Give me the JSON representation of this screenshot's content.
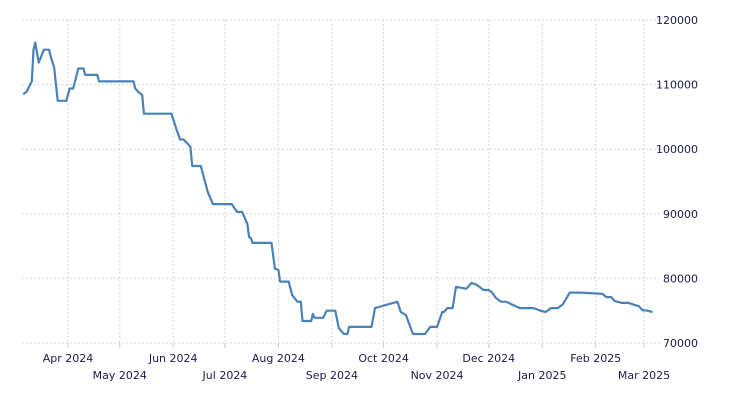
{
  "chart_data": {
    "type": "line",
    "title": "",
    "xlabel": "",
    "ylabel": "",
    "ylim": [
      70000,
      120000
    ],
    "y_ticks": [
      70000,
      80000,
      90000,
      100000,
      110000,
      120000
    ],
    "y_tick_labels": [
      "70000",
      "80000",
      "90000",
      "100000",
      "110000",
      "120000"
    ],
    "y_axis_position": "right",
    "x_ticks": [
      {
        "date": "2024-04-01",
        "label": "Apr 2024",
        "row": 1
      },
      {
        "date": "2024-05-01",
        "label": "May 2024",
        "row": 2
      },
      {
        "date": "2024-06-01",
        "label": "Jun 2024",
        "row": 1
      },
      {
        "date": "2024-07-01",
        "label": "Jul 2024",
        "row": 2
      },
      {
        "date": "2024-08-01",
        "label": "Aug 2024",
        "row": 1
      },
      {
        "date": "2024-09-01",
        "label": "Sep 2024",
        "row": 2
      },
      {
        "date": "2024-10-01",
        "label": "Oct 2024",
        "row": 1
      },
      {
        "date": "2024-11-01",
        "label": "Nov 2024",
        "row": 2
      },
      {
        "date": "2024-12-01",
        "label": "Dec 2024",
        "row": 1
      },
      {
        "date": "2025-01-01",
        "label": "Jan 2025",
        "row": 2
      },
      {
        "date": "2025-02-01",
        "label": "Feb 2025",
        "row": 1
      },
      {
        "date": "2025-03-01",
        "label": "Mar 2025",
        "row": 2
      }
    ],
    "grid": true,
    "grid_style": "dotted",
    "line_color": "#4a82b8",
    "series": [
      {
        "x": [
          "2024-03-06",
          "2024-03-08",
          "2024-03-11",
          "2024-03-12",
          "2024-03-13",
          "2024-03-15",
          "2024-03-18",
          "2024-03-21",
          "2024-03-22",
          "2024-03-24",
          "2024-03-26",
          "2024-03-31",
          "2024-04-02",
          "2024-04-04",
          "2024-04-07",
          "2024-04-10",
          "2024-04-11",
          "2024-04-18",
          "2024-04-19",
          "2024-05-09",
          "2024-05-10",
          "2024-05-12",
          "2024-05-14",
          "2024-05-15",
          "2024-05-31",
          "2024-06-03",
          "2024-06-05",
          "2024-06-07",
          "2024-06-11",
          "2024-06-12",
          "2024-06-17",
          "2024-06-21",
          "2024-06-24",
          "2024-07-05",
          "2024-07-08",
          "2024-07-11",
          "2024-07-14",
          "2024-07-15",
          "2024-07-16",
          "2024-07-17",
          "2024-07-28",
          "2024-07-30",
          "2024-08-01",
          "2024-08-02",
          "2024-08-07",
          "2024-08-09",
          "2024-08-12",
          "2024-08-14",
          "2024-08-15",
          "2024-08-20",
          "2024-08-21",
          "2024-08-22",
          "2024-08-27",
          "2024-08-29",
          "2024-09-03",
          "2024-09-05",
          "2024-09-08",
          "2024-09-10",
          "2024-09-11",
          "2024-09-24",
          "2024-09-26",
          "2024-10-09",
          "2024-10-11",
          "2024-10-14",
          "2024-10-18",
          "2024-10-25",
          "2024-10-28",
          "2024-11-01",
          "2024-11-04",
          "2024-11-05",
          "2024-11-07",
          "2024-11-10",
          "2024-11-12",
          "2024-11-18",
          "2024-11-21",
          "2024-11-24",
          "2024-11-28",
          "2024-12-01",
          "2024-12-03",
          "2024-12-05",
          "2024-12-08",
          "2024-12-11",
          "2024-12-19",
          "2024-12-27",
          "2024-12-31",
          "2025-01-03",
          "2025-01-06",
          "2025-01-10",
          "2025-01-13",
          "2025-01-17",
          "2025-01-23",
          "2025-02-05",
          "2025-02-07",
          "2025-02-10",
          "2025-02-12",
          "2025-02-16",
          "2025-02-20",
          "2025-02-26",
          "2025-02-28",
          "2025-03-03",
          "2025-03-06"
        ],
        "values": [
          108500,
          108900,
          110500,
          115400,
          116500,
          113400,
          115400,
          115400,
          114300,
          112600,
          107500,
          107500,
          109400,
          109400,
          112500,
          112500,
          111500,
          111500,
          110500,
          110500,
          109400,
          108800,
          108400,
          105500,
          105500,
          103000,
          101500,
          101500,
          100400,
          97400,
          97400,
          93400,
          91500,
          91500,
          90300,
          90300,
          88400,
          86400,
          86300,
          85500,
          85500,
          81500,
          81300,
          79500,
          79500,
          77400,
          76400,
          76400,
          73400,
          73400,
          74500,
          73900,
          73900,
          75000,
          75000,
          72300,
          71400,
          71400,
          72500,
          72500,
          75400,
          76400,
          74800,
          74300,
          71400,
          71400,
          72500,
          72500,
          74800,
          74800,
          75400,
          75400,
          78700,
          78400,
          79300,
          79000,
          78200,
          78200,
          77800,
          77000,
          76400,
          76400,
          75400,
          75400,
          75000,
          74800,
          75400,
          75400,
          76000,
          77800,
          77800,
          77600,
          77100,
          77100,
          76500,
          76200,
          76200,
          75700,
          75100,
          75000,
          74800
        ]
      }
    ]
  }
}
